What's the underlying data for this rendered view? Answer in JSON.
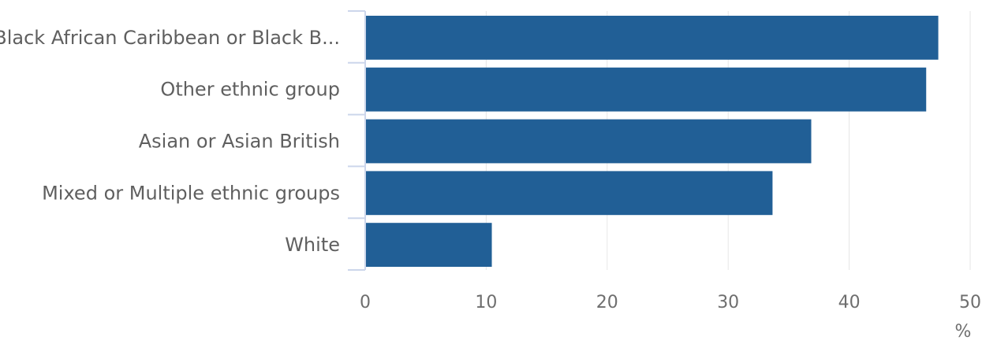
{
  "chart_data": {
    "type": "bar",
    "orientation": "horizontal",
    "categories": [
      "Black African Caribbean or Black B...",
      "Other ethnic group",
      "Asian or Asian British",
      "Mixed or Multiple ethnic groups",
      "White"
    ],
    "values": [
      47.3,
      46.3,
      36.8,
      33.6,
      10.4
    ],
    "xlim": [
      0,
      50
    ],
    "x_ticks": [
      "0",
      "10",
      "20",
      "30",
      "40",
      "50"
    ],
    "xlabel": "%",
    "grid": "vertical",
    "bar_color": "#215f96"
  }
}
